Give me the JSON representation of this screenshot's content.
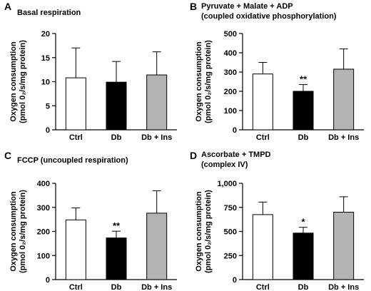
{
  "chart_data": [
    {
      "type": "bar",
      "panel": "A",
      "title_lines": [
        "Basal respiration"
      ],
      "ylabel_lines": [
        "Oxygen consumption",
        "(pmol 0₂/s/mg protein)"
      ],
      "categories": [
        "Ctrl",
        "Db",
        "Db + Ins"
      ],
      "values": [
        10.8,
        9.9,
        11.4
      ],
      "errors": [
        6.2,
        4.3,
        4.8
      ],
      "significance": [
        "",
        "",
        ""
      ],
      "bar_colors": [
        "#ffffff",
        "#000000",
        "#b3b3b3"
      ],
      "ylim": [
        0,
        20
      ],
      "yticks": [
        0,
        5,
        10,
        15,
        20
      ],
      "ytick_labels": [
        "0",
        "5",
        "10",
        "15",
        "20"
      ]
    },
    {
      "type": "bar",
      "panel": "B",
      "title_lines": [
        "Pyruvate + Malate + ADP",
        "(coupled oxidative phosphorylation)"
      ],
      "ylabel_lines": [
        "Oxygen consumption",
        "(pmol 0₂/s/mg protein)"
      ],
      "categories": [
        "Ctrl",
        "Db",
        "Db + Ins"
      ],
      "values": [
        290,
        200,
        315
      ],
      "errors": [
        60,
        35,
        105
      ],
      "significance": [
        "",
        "**",
        ""
      ],
      "bar_colors": [
        "#ffffff",
        "#000000",
        "#b3b3b3"
      ],
      "ylim": [
        0,
        500
      ],
      "yticks": [
        0,
        100,
        200,
        300,
        400,
        500
      ],
      "ytick_labels": [
        "0",
        "100",
        "200",
        "300",
        "400",
        "500"
      ]
    },
    {
      "type": "bar",
      "panel": "C",
      "title_lines": [
        "FCCP (uncoupled respiration)"
      ],
      "ylabel_lines": [
        "Oxygen consumption",
        "(pmol 0₂/s/mg protein)"
      ],
      "categories": [
        "Ctrl",
        "Db",
        "Db + Ins"
      ],
      "values": [
        248,
        173,
        276
      ],
      "errors": [
        50,
        28,
        93
      ],
      "significance": [
        "",
        "**",
        ""
      ],
      "bar_colors": [
        "#ffffff",
        "#000000",
        "#b3b3b3"
      ],
      "ylim": [
        0,
        400
      ],
      "yticks": [
        0,
        100,
        200,
        300,
        400
      ],
      "ytick_labels": [
        "0",
        "100",
        "200",
        "300",
        "400"
      ]
    },
    {
      "type": "bar",
      "panel": "D",
      "title_lines": [
        "Ascorbate + TMPD",
        "(complex IV)"
      ],
      "ylabel_lines": [
        "Oxygen consumption",
        "(pmol 0₂/s/mg protein)"
      ],
      "categories": [
        "Ctrl",
        "Db",
        "Db + Ins"
      ],
      "values": [
        675,
        483,
        700
      ],
      "errors": [
        130,
        60,
        160
      ],
      "significance": [
        "",
        "*",
        ""
      ],
      "bar_colors": [
        "#ffffff",
        "#000000",
        "#b3b3b3"
      ],
      "ylim": [
        0,
        1000
      ],
      "yticks": [
        0,
        250,
        500,
        750,
        1000
      ],
      "ytick_labels": [
        "0",
        "250",
        "500",
        "750",
        "1,000"
      ]
    }
  ]
}
